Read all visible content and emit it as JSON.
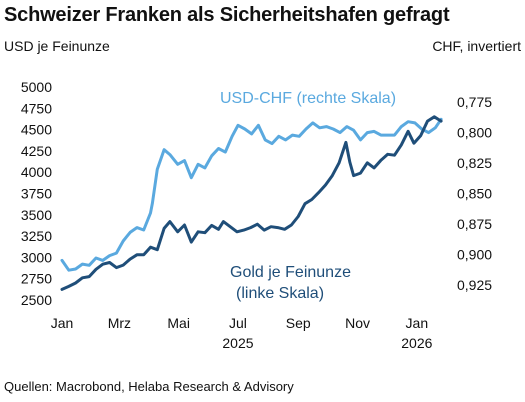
{
  "colors": {
    "gold": "#1f4e79",
    "usdchf": "#5aa9df",
    "text": "#111111"
  },
  "chart_data": {
    "type": "line",
    "title": "Schweizer Franken als Sicherheitshafen gefragt",
    "ylabel_left": "USD je Feinunze",
    "ylabel_right": "CHF, invertiert",
    "source": "Quellen: Macrobond, Helaba Research & Advisory",
    "x_range": [
      "2025-01-01",
      "2026-01-31"
    ],
    "x_ticks": [
      {
        "date": "2025-01-01",
        "label": "Jan"
      },
      {
        "date": "2025-03-01",
        "label": "Mrz"
      },
      {
        "date": "2025-05-01",
        "label": "Mai"
      },
      {
        "date": "2025-07-01",
        "label": "Jul"
      },
      {
        "date": "2025-09-01",
        "label": "Sep"
      },
      {
        "date": "2025-11-01",
        "label": "Nov"
      },
      {
        "date": "2026-01-01",
        "label": "Jan"
      }
    ],
    "year_labels": [
      {
        "date": "2025-07-01",
        "label": "2025"
      },
      {
        "date": "2026-01-01",
        "label": "2026"
      }
    ],
    "y_left": {
      "range": [
        2500,
        5000
      ],
      "ticks": [
        2500,
        2750,
        3000,
        3250,
        3500,
        3750,
        4000,
        4250,
        4500,
        4750,
        5000
      ]
    },
    "y_right": {
      "range": [
        0.9375,
        0.7625
      ],
      "inverted": true,
      "ticks": [
        "0,775",
        "0,800",
        "0,825",
        "0,850",
        "0,875",
        "0,900",
        "0,925"
      ],
      "tick_values": [
        0.775,
        0.8,
        0.825,
        0.85,
        0.875,
        0.9,
        0.925
      ]
    },
    "series": [
      {
        "name": "Gold je Feinunze",
        "legend_line1": "Gold je Feinunze",
        "legend_line2": "(linke Skala)",
        "axis": "left",
        "points": [
          [
            "2025-01-01",
            2625
          ],
          [
            "2025-01-08",
            2660
          ],
          [
            "2025-01-15",
            2700
          ],
          [
            "2025-01-22",
            2760
          ],
          [
            "2025-01-29",
            2775
          ],
          [
            "2025-02-05",
            2860
          ],
          [
            "2025-02-12",
            2920
          ],
          [
            "2025-02-19",
            2940
          ],
          [
            "2025-02-26",
            2880
          ],
          [
            "2025-03-05",
            2910
          ],
          [
            "2025-03-12",
            2980
          ],
          [
            "2025-03-19",
            3030
          ],
          [
            "2025-03-26",
            3030
          ],
          [
            "2025-04-02",
            3120
          ],
          [
            "2025-04-09",
            3090
          ],
          [
            "2025-04-16",
            3340
          ],
          [
            "2025-04-22",
            3420
          ],
          [
            "2025-04-30",
            3300
          ],
          [
            "2025-05-07",
            3380
          ],
          [
            "2025-05-14",
            3180
          ],
          [
            "2025-05-21",
            3300
          ],
          [
            "2025-05-28",
            3290
          ],
          [
            "2025-06-04",
            3375
          ],
          [
            "2025-06-11",
            3330
          ],
          [
            "2025-06-16",
            3420
          ],
          [
            "2025-06-23",
            3360
          ],
          [
            "2025-06-30",
            3300
          ],
          [
            "2025-07-07",
            3320
          ],
          [
            "2025-07-14",
            3350
          ],
          [
            "2025-07-21",
            3390
          ],
          [
            "2025-07-28",
            3320
          ],
          [
            "2025-08-04",
            3360
          ],
          [
            "2025-08-11",
            3350
          ],
          [
            "2025-08-18",
            3330
          ],
          [
            "2025-08-25",
            3380
          ],
          [
            "2025-09-01",
            3480
          ],
          [
            "2025-09-08",
            3630
          ],
          [
            "2025-09-15",
            3680
          ],
          [
            "2025-09-22",
            3760
          ],
          [
            "2025-09-29",
            3850
          ],
          [
            "2025-10-06",
            3960
          ],
          [
            "2025-10-13",
            4110
          ],
          [
            "2025-10-20",
            4350
          ],
          [
            "2025-10-24",
            4120
          ],
          [
            "2025-10-28",
            3960
          ],
          [
            "2025-11-04",
            3990
          ],
          [
            "2025-11-11",
            4110
          ],
          [
            "2025-11-18",
            4050
          ],
          [
            "2025-11-25",
            4140
          ],
          [
            "2025-12-02",
            4210
          ],
          [
            "2025-12-09",
            4200
          ],
          [
            "2025-12-16",
            4320
          ],
          [
            "2025-12-23",
            4480
          ],
          [
            "2025-12-29",
            4340
          ],
          [
            "2026-01-05",
            4430
          ],
          [
            "2026-01-12",
            4600
          ],
          [
            "2026-01-19",
            4650
          ],
          [
            "2026-01-26",
            4600
          ]
        ]
      },
      {
        "name": "USD-CHF (rechte Skala)",
        "axis": "right",
        "points": [
          [
            "2025-01-01",
            0.905
          ],
          [
            "2025-01-08",
            0.913
          ],
          [
            "2025-01-15",
            0.912
          ],
          [
            "2025-01-22",
            0.908
          ],
          [
            "2025-01-29",
            0.909
          ],
          [
            "2025-02-05",
            0.903
          ],
          [
            "2025-02-12",
            0.905
          ],
          [
            "2025-02-19",
            0.901
          ],
          [
            "2025-02-26",
            0.899
          ],
          [
            "2025-03-05",
            0.889
          ],
          [
            "2025-03-12",
            0.882
          ],
          [
            "2025-03-19",
            0.878
          ],
          [
            "2025-03-26",
            0.88
          ],
          [
            "2025-04-02",
            0.866
          ],
          [
            "2025-04-04",
            0.858
          ],
          [
            "2025-04-09",
            0.83
          ],
          [
            "2025-04-16",
            0.814
          ],
          [
            "2025-04-22",
            0.818
          ],
          [
            "2025-04-30",
            0.826
          ],
          [
            "2025-05-07",
            0.823
          ],
          [
            "2025-05-14",
            0.837
          ],
          [
            "2025-05-21",
            0.826
          ],
          [
            "2025-05-28",
            0.829
          ],
          [
            "2025-06-04",
            0.819
          ],
          [
            "2025-06-11",
            0.813
          ],
          [
            "2025-06-18",
            0.816
          ],
          [
            "2025-06-25",
            0.803
          ],
          [
            "2025-07-01",
            0.794
          ],
          [
            "2025-07-08",
            0.797
          ],
          [
            "2025-07-15",
            0.801
          ],
          [
            "2025-07-22",
            0.794
          ],
          [
            "2025-07-29",
            0.806
          ],
          [
            "2025-08-05",
            0.809
          ],
          [
            "2025-08-12",
            0.803
          ],
          [
            "2025-08-19",
            0.806
          ],
          [
            "2025-08-26",
            0.802
          ],
          [
            "2025-09-02",
            0.803
          ],
          [
            "2025-09-09",
            0.797
          ],
          [
            "2025-09-16",
            0.792
          ],
          [
            "2025-09-23",
            0.796
          ],
          [
            "2025-09-30",
            0.795
          ],
          [
            "2025-10-07",
            0.797
          ],
          [
            "2025-10-14",
            0.8
          ],
          [
            "2025-10-21",
            0.795
          ],
          [
            "2025-10-28",
            0.798
          ],
          [
            "2025-11-04",
            0.806
          ],
          [
            "2025-11-11",
            0.8
          ],
          [
            "2025-11-18",
            0.799
          ],
          [
            "2025-11-25",
            0.802
          ],
          [
            "2025-12-02",
            0.802
          ],
          [
            "2025-12-09",
            0.802
          ],
          [
            "2025-12-16",
            0.795
          ],
          [
            "2025-12-23",
            0.791
          ],
          [
            "2025-12-30",
            0.792
          ],
          [
            "2026-01-06",
            0.797
          ],
          [
            "2026-01-13",
            0.8
          ],
          [
            "2026-01-20",
            0.796
          ],
          [
            "2026-01-26",
            0.789
          ]
        ]
      }
    ]
  }
}
